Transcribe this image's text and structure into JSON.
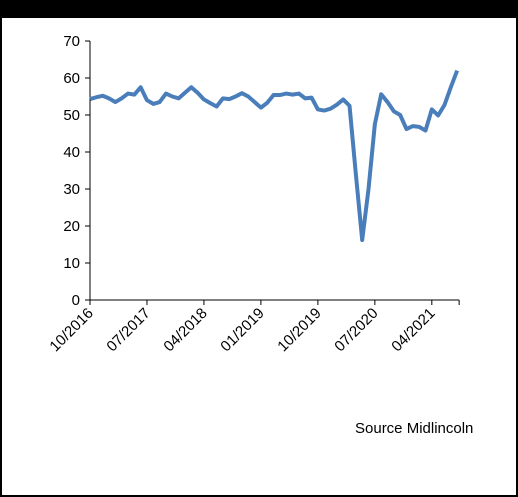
{
  "chart_data": {
    "type": "line",
    "categories": [
      "10/2016",
      null,
      null,
      null,
      null,
      null,
      null,
      null,
      null,
      "07/2017",
      null,
      null,
      null,
      null,
      null,
      null,
      null,
      null,
      "04/2018",
      null,
      null,
      null,
      null,
      null,
      null,
      null,
      null,
      "01/2019",
      null,
      null,
      null,
      null,
      null,
      null,
      null,
      null,
      "10/2019",
      null,
      null,
      null,
      null,
      null,
      null,
      null,
      null,
      "07/2020",
      null,
      null,
      null,
      null,
      null,
      null,
      null,
      null,
      "04/2021",
      null,
      null,
      null,
      null
    ],
    "series": [
      {
        "color": "#4a7ebb",
        "values": [
          54.3,
          54.8,
          55.2,
          54.5,
          53.5,
          54.5,
          55.8,
          55.5,
          57.5,
          54,
          53,
          53.5,
          55.8,
          55,
          54.5,
          56,
          57.5,
          56,
          54.2,
          53.2,
          52.3,
          54.5,
          54.3,
          55,
          55.9,
          55,
          53.5,
          52,
          53.3,
          55.4,
          55.4,
          55.8,
          55.5,
          55.8,
          54.5,
          54.7,
          51.5,
          51.2,
          51.7,
          52.8,
          54.2,
          52.5,
          34,
          16.2,
          30,
          47.5,
          55.6,
          53.5,
          51,
          50,
          46.2,
          47,
          46.8,
          45.8,
          51.5,
          49.9,
          52.7,
          57.5,
          62
        ]
      }
    ],
    "ylim": [
      0,
      70
    ],
    "yticks": [
      0,
      10,
      20,
      30,
      40,
      50,
      60,
      70
    ],
    "source": "Source Midlincoln"
  }
}
